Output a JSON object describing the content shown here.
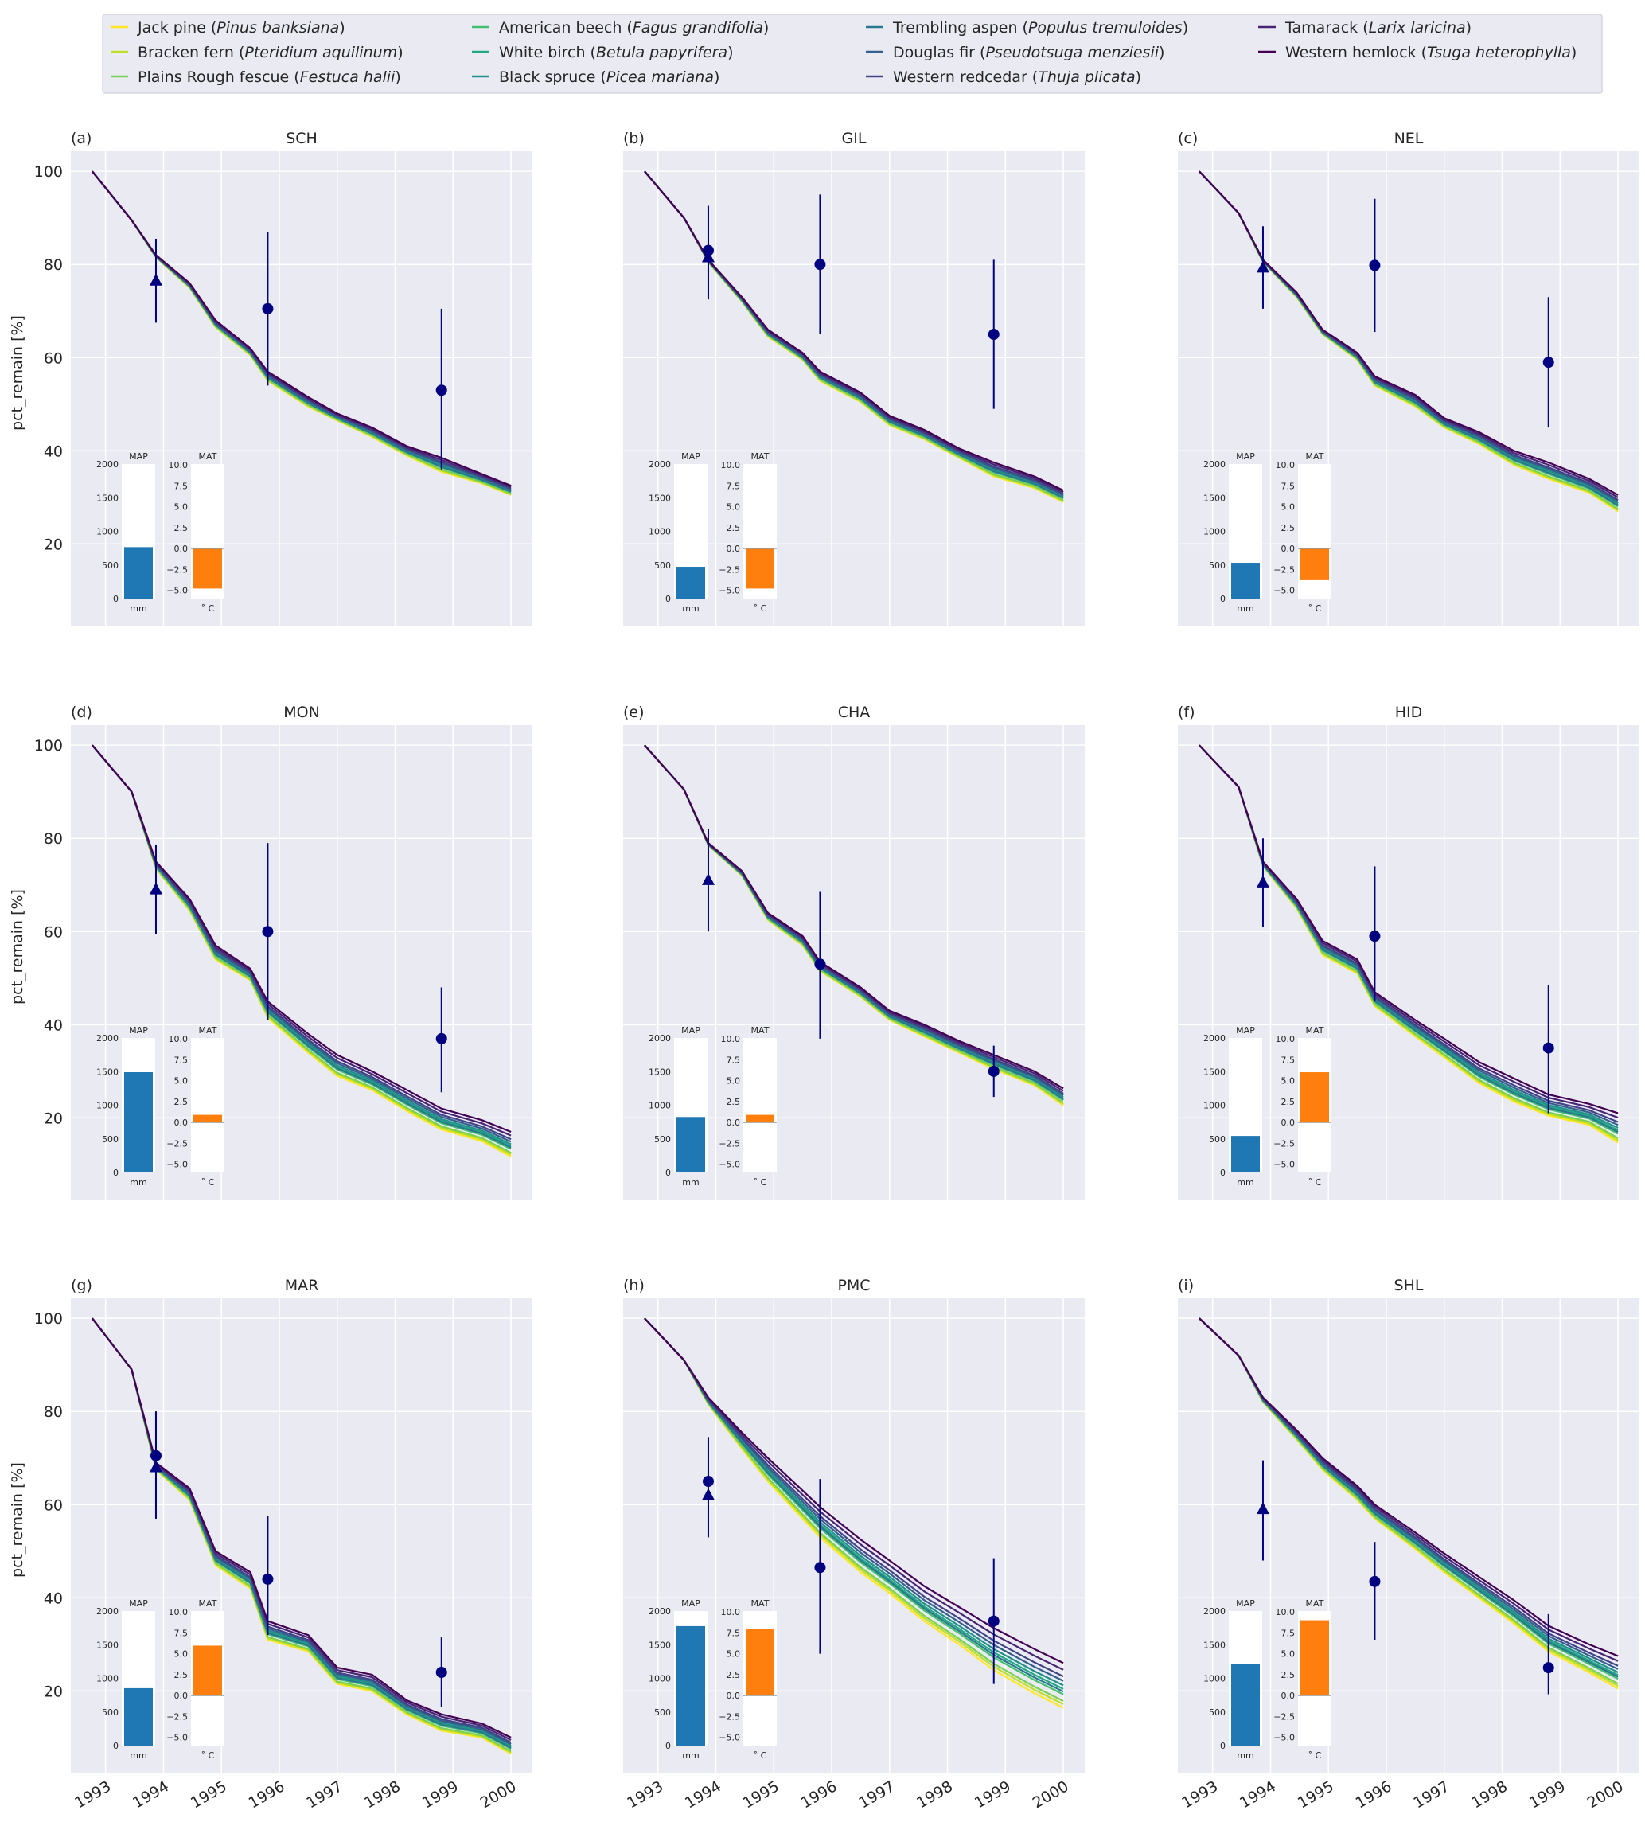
{
  "legend": {
    "position": "top",
    "items": [
      {
        "common": "Jack pine",
        "latin": "Pinus banksiana",
        "color": "#fde725",
        "band_position": 0.0
      },
      {
        "common": "Bracken fern",
        "latin": "Pteridium aquilinum",
        "color": "#bddf26",
        "band_position": 0.08
      },
      {
        "common": "Plains Rough fescue",
        "latin": "Festuca halii",
        "color": "#7ad151",
        "band_position": 0.15
      },
      {
        "common": "American beech",
        "latin": "Fagus grandifolia",
        "color": "#44bf70",
        "band_position": 0.3
      },
      {
        "common": "White birch",
        "latin": "Betula papyrifera",
        "color": "#22a884",
        "band_position": 0.42
      },
      {
        "common": "Black spruce",
        "latin": "Picea mariana",
        "color": "#21918c",
        "band_position": 0.5
      },
      {
        "common": "Trembling aspen",
        "latin": "Populus tremuloides",
        "color": "#2a788e",
        "band_position": 0.36
      },
      {
        "common": "Douglas fir",
        "latin": "Pseudotsuga menziesii",
        "color": "#355f8d",
        "band_position": 0.6
      },
      {
        "common": "Western redcedar",
        "latin": "Thuja plicata",
        "color": "#414487",
        "band_position": 0.7
      },
      {
        "common": "Tamarack",
        "latin": "Larix laricina",
        "color": "#482475",
        "band_position": 0.85
      },
      {
        "common": "Western hemlock",
        "latin": "Tsuga heterophylla",
        "color": "#440154",
        "band_position": 1.0
      }
    ]
  },
  "chart_data": {
    "type": "line",
    "ylabel": "pct_remain [%]",
    "xlabel": "",
    "xlim": [
      1992.4,
      2000.37
    ],
    "ylim": [
      2.3,
      104.3
    ],
    "xticks": [
      "1993",
      "1994",
      "1995",
      "1996",
      "1997",
      "1998",
      "1999",
      "2000"
    ],
    "yticks": [
      "20",
      "40",
      "60",
      "80",
      "100"
    ],
    "grid": true,
    "observation_color": "#000080",
    "x": [
      1992.77,
      1993.45,
      1993.87,
      1994.45,
      1994.9,
      1995.5,
      1995.8,
      1996.5,
      1997.0,
      1997.6,
      1998.2,
      1998.8,
      1999.5,
      2000.0
    ],
    "inset": {
      "MAP": {
        "title": "MAP",
        "unit": "mm",
        "ylim": [
          0,
          2000
        ],
        "ticks": [
          "0",
          "500",
          "1000",
          "1500",
          "2000"
        ],
        "color": "#1f77b4"
      },
      "MAT": {
        "title": "MAT",
        "unit": "˚ C",
        "ylim": [
          -6,
          10.1
        ],
        "ticks": [
          "−5.0",
          "−2.5",
          "0.0",
          "2.5",
          "5.0",
          "7.5",
          "10.0"
        ],
        "tick_values": [
          -5,
          -2.5,
          0,
          2.5,
          5,
          7.5,
          10
        ],
        "color": "#ff7f0e"
      }
    },
    "panels": [
      {
        "label": "(a)",
        "title": "SCH",
        "MAP": 765,
        "MAT": -4.8,
        "upper": [
          100,
          89.5,
          82,
          76,
          68,
          62,
          57,
          51.5,
          48,
          45,
          41,
          38.5,
          35,
          32.5
        ],
        "lower": [
          100,
          89.5,
          81.5,
          75,
          66.5,
          60.5,
          55,
          49.5,
          46.5,
          43,
          39,
          35.5,
          33,
          30.5
        ],
        "observations": [
          {
            "x": 1993.87,
            "y": 76.5,
            "lo": 67.5,
            "hi": 85.5,
            "marker": "triangle"
          },
          {
            "x": 1995.8,
            "y": 70.5,
            "lo": 54,
            "hi": 87,
            "marker": "circle"
          },
          {
            "x": 1998.8,
            "y": 53,
            "lo": 36,
            "hi": 70.5,
            "marker": "circle"
          }
        ]
      },
      {
        "label": "(b)",
        "title": "GIL",
        "MAP": 473,
        "MAT": -4.8,
        "upper": [
          100,
          90,
          81,
          73,
          66,
          61,
          57,
          52.5,
          47.5,
          44.5,
          40.5,
          37.5,
          34.5,
          31.5
        ],
        "lower": [
          100,
          90,
          80.5,
          72,
          64.5,
          59.5,
          55,
          50.5,
          45.5,
          42.5,
          38.5,
          34.5,
          32,
          29
        ],
        "observations": [
          {
            "x": 1993.87,
            "y": 81.5,
            "lo": 72.5,
            "hi": 92.6,
            "marker": "triangle"
          },
          {
            "x": 1993.87,
            "y": 83,
            "lo": 72.5,
            "hi": 92.6,
            "marker": "circle"
          },
          {
            "x": 1995.8,
            "y": 80,
            "lo": 65,
            "hi": 95,
            "marker": "circle"
          },
          {
            "x": 1998.8,
            "y": 65,
            "lo": 49,
            "hi": 81,
            "marker": "circle"
          }
        ]
      },
      {
        "label": "(c)",
        "title": "NEL",
        "MAP": 532,
        "MAT": -3.8,
        "upper": [
          100,
          91,
          81,
          74,
          66,
          61,
          56,
          52,
          47,
          44,
          40,
          37.5,
          34,
          30.5
        ],
        "lower": [
          100,
          91,
          80.5,
          73,
          65,
          59.5,
          54,
          49.5,
          45,
          41.5,
          37,
          34,
          31,
          27
        ],
        "observations": [
          {
            "x": 1993.87,
            "y": 79.3,
            "lo": 70.5,
            "hi": 88.2,
            "marker": "triangle"
          },
          {
            "x": 1995.8,
            "y": 79.8,
            "lo": 65.5,
            "hi": 94.1,
            "marker": "circle"
          },
          {
            "x": 1998.8,
            "y": 59,
            "lo": 45,
            "hi": 73,
            "marker": "circle"
          }
        ]
      },
      {
        "label": "(d)",
        "title": "MON",
        "MAP": 1491,
        "MAT": 0.9,
        "upper": [
          100,
          90,
          75,
          67,
          57,
          52,
          45,
          38,
          33.5,
          30,
          26,
          22,
          19.5,
          17
        ],
        "lower": [
          100,
          90,
          73.5,
          64.5,
          54,
          49.5,
          41.5,
          34,
          29,
          26,
          21.5,
          17.5,
          15,
          11.7
        ],
        "observations": [
          {
            "x": 1993.87,
            "y": 69,
            "lo": 59.5,
            "hi": 78.5,
            "marker": "triangle"
          },
          {
            "x": 1995.8,
            "y": 60,
            "lo": 41,
            "hi": 79,
            "marker": "circle"
          },
          {
            "x": 1998.8,
            "y": 37,
            "lo": 25.5,
            "hi": 48,
            "marker": "circle"
          }
        ]
      },
      {
        "label": "(e)",
        "title": "CHA",
        "MAP": 825,
        "MAT": 0.9,
        "upper": [
          100,
          90.5,
          79,
          73,
          64,
          59,
          53.5,
          48,
          43,
          40,
          36.5,
          33.5,
          30,
          26.3
        ],
        "lower": [
          100,
          90.5,
          78.5,
          72,
          62.5,
          57,
          51.5,
          46,
          41,
          37.5,
          34,
          30.5,
          27,
          22.7
        ],
        "observations": [
          {
            "x": 1993.87,
            "y": 71,
            "lo": 60,
            "hi": 82,
            "marker": "triangle"
          },
          {
            "x": 1995.8,
            "y": 53,
            "lo": 37,
            "hi": 68.5,
            "marker": "circle"
          },
          {
            "x": 1998.8,
            "y": 30,
            "lo": 24.5,
            "hi": 35.5,
            "marker": "circle"
          }
        ]
      },
      {
        "label": "(f)",
        "title": "HID",
        "MAP": 543,
        "MAT": 6.0,
        "upper": [
          100,
          91,
          75,
          67,
          58,
          54,
          47,
          41,
          37,
          32,
          28.5,
          25,
          23,
          21
        ],
        "lower": [
          100,
          91,
          74,
          65,
          55,
          51,
          44,
          37.5,
          33,
          27.5,
          23.5,
          20.5,
          18.5,
          14.7
        ],
        "observations": [
          {
            "x": 1993.87,
            "y": 70.5,
            "lo": 61,
            "hi": 80,
            "marker": "triangle"
          },
          {
            "x": 1995.8,
            "y": 59,
            "lo": 45,
            "hi": 74,
            "marker": "circle"
          },
          {
            "x": 1998.8,
            "y": 35,
            "lo": 21,
            "hi": 48.5,
            "marker": "circle"
          }
        ]
      },
      {
        "label": "(g)",
        "title": "MAR",
        "MAP": 853,
        "MAT": 5.96,
        "upper": [
          100,
          89,
          69,
          63.5,
          50,
          45.5,
          35,
          32,
          25,
          23.5,
          18,
          15,
          13,
          10
        ],
        "lower": [
          100,
          89,
          67.5,
          61,
          47,
          42,
          31,
          28.5,
          21.5,
          20,
          15,
          11.5,
          10,
          6.5
        ],
        "observations": [
          {
            "x": 1993.87,
            "y": 68,
            "lo": 57,
            "hi": 80,
            "marker": "triangle"
          },
          {
            "x": 1993.87,
            "y": 70.5,
            "lo": 57,
            "hi": 80,
            "marker": "circle"
          },
          {
            "x": 1995.8,
            "y": 44,
            "lo": 32,
            "hi": 57.5,
            "marker": "circle"
          },
          {
            "x": 1998.8,
            "y": 24,
            "lo": 16.5,
            "hi": 31.5,
            "marker": "circle"
          }
        ]
      },
      {
        "label": "(h)",
        "title": "PMC",
        "MAP": 1776,
        "MAT": 7.96,
        "upper": [
          100,
          91,
          83,
          75.5,
          70,
          63,
          59.5,
          52.5,
          48,
          42.5,
          38,
          33.5,
          29,
          26
        ],
        "lower": [
          100,
          91,
          81.5,
          72,
          65,
          57,
          53,
          45.5,
          41,
          35,
          30,
          24.5,
          19.5,
          16.4
        ],
        "observations": [
          {
            "x": 1993.87,
            "y": 62,
            "lo": 53,
            "hi": 74.5,
            "marker": "triangle"
          },
          {
            "x": 1993.87,
            "y": 65,
            "lo": 53,
            "hi": 74.5,
            "marker": "circle"
          },
          {
            "x": 1995.8,
            "y": 46.5,
            "lo": 28,
            "hi": 65.5,
            "marker": "circle"
          },
          {
            "x": 1998.8,
            "y": 35,
            "lo": 21.5,
            "hi": 48.5,
            "marker": "circle"
          }
        ]
      },
      {
        "label": "(i)",
        "title": "SHL",
        "MAP": 1211,
        "MAT": 9.0,
        "upper": [
          100,
          92,
          83,
          76,
          70,
          64,
          60,
          54,
          49.5,
          44.5,
          39.5,
          34,
          30,
          27.5
        ],
        "lower": [
          100,
          92,
          82,
          74,
          67.5,
          61,
          57,
          50.5,
          45.5,
          40,
          34.5,
          28.5,
          24,
          20.5
        ],
        "observations": [
          {
            "x": 1993.87,
            "y": 59,
            "lo": 48,
            "hi": 69.5,
            "marker": "triangle"
          },
          {
            "x": 1995.8,
            "y": 43.5,
            "lo": 31,
            "hi": 52,
            "marker": "circle"
          },
          {
            "x": 1998.8,
            "y": 25,
            "lo": 19.3,
            "hi": 36.5,
            "marker": "circle"
          }
        ]
      }
    ]
  }
}
